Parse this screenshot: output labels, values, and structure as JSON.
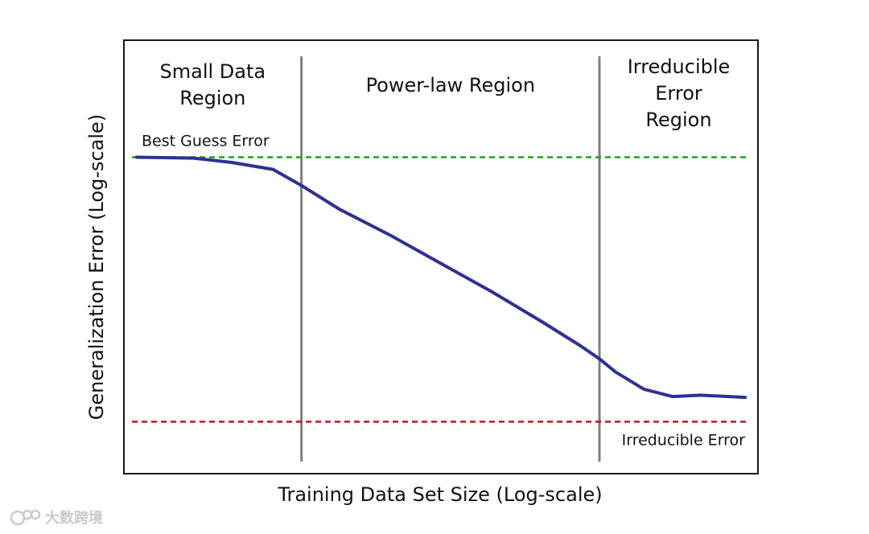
{
  "chart_data": {
    "type": "line",
    "xlabel": "Training Data Set Size (Log-scale)",
    "ylabel": "Generalization Error (Log-scale)",
    "xlim": [
      0,
      100
    ],
    "ylim": [
      0,
      100
    ],
    "xscale": "log",
    "yscale": "log",
    "tick_labels_shown": false,
    "grid": false,
    "regions": [
      {
        "label_lines": [
          "Small Data",
          "Region"
        ],
        "x_start": 0,
        "x_end": 28
      },
      {
        "label_lines": [
          "Power-law Region"
        ],
        "x_start": 28,
        "x_end": 75
      },
      {
        "label_lines": [
          "Irreducible",
          "Error",
          "Region"
        ],
        "x_start": 75,
        "x_end": 100
      }
    ],
    "boundaries": [
      28,
      75
    ],
    "reference_lines": [
      {
        "label": "Best Guess Error",
        "y": 73,
        "color": "#1aa31a",
        "style": "dashed"
      },
      {
        "label": "Irreducible Error",
        "y": 12,
        "color": "#c0141c",
        "style": "dashed"
      }
    ],
    "series": [
      {
        "color": "#2e3192",
        "x": [
          2,
          11,
          17,
          23.5,
          28,
          34,
          42,
          50,
          58,
          66,
          72,
          75,
          77.5,
          82,
          86.5,
          91,
          98
        ],
        "y": [
          73,
          72.8,
          71.8,
          70.2,
          66.5,
          61,
          55,
          48.5,
          42,
          35,
          29.5,
          26.5,
          23.5,
          19.5,
          17.8,
          18.1,
          17.6
        ]
      }
    ]
  },
  "watermark": {
    "text": "大数跨境"
  }
}
